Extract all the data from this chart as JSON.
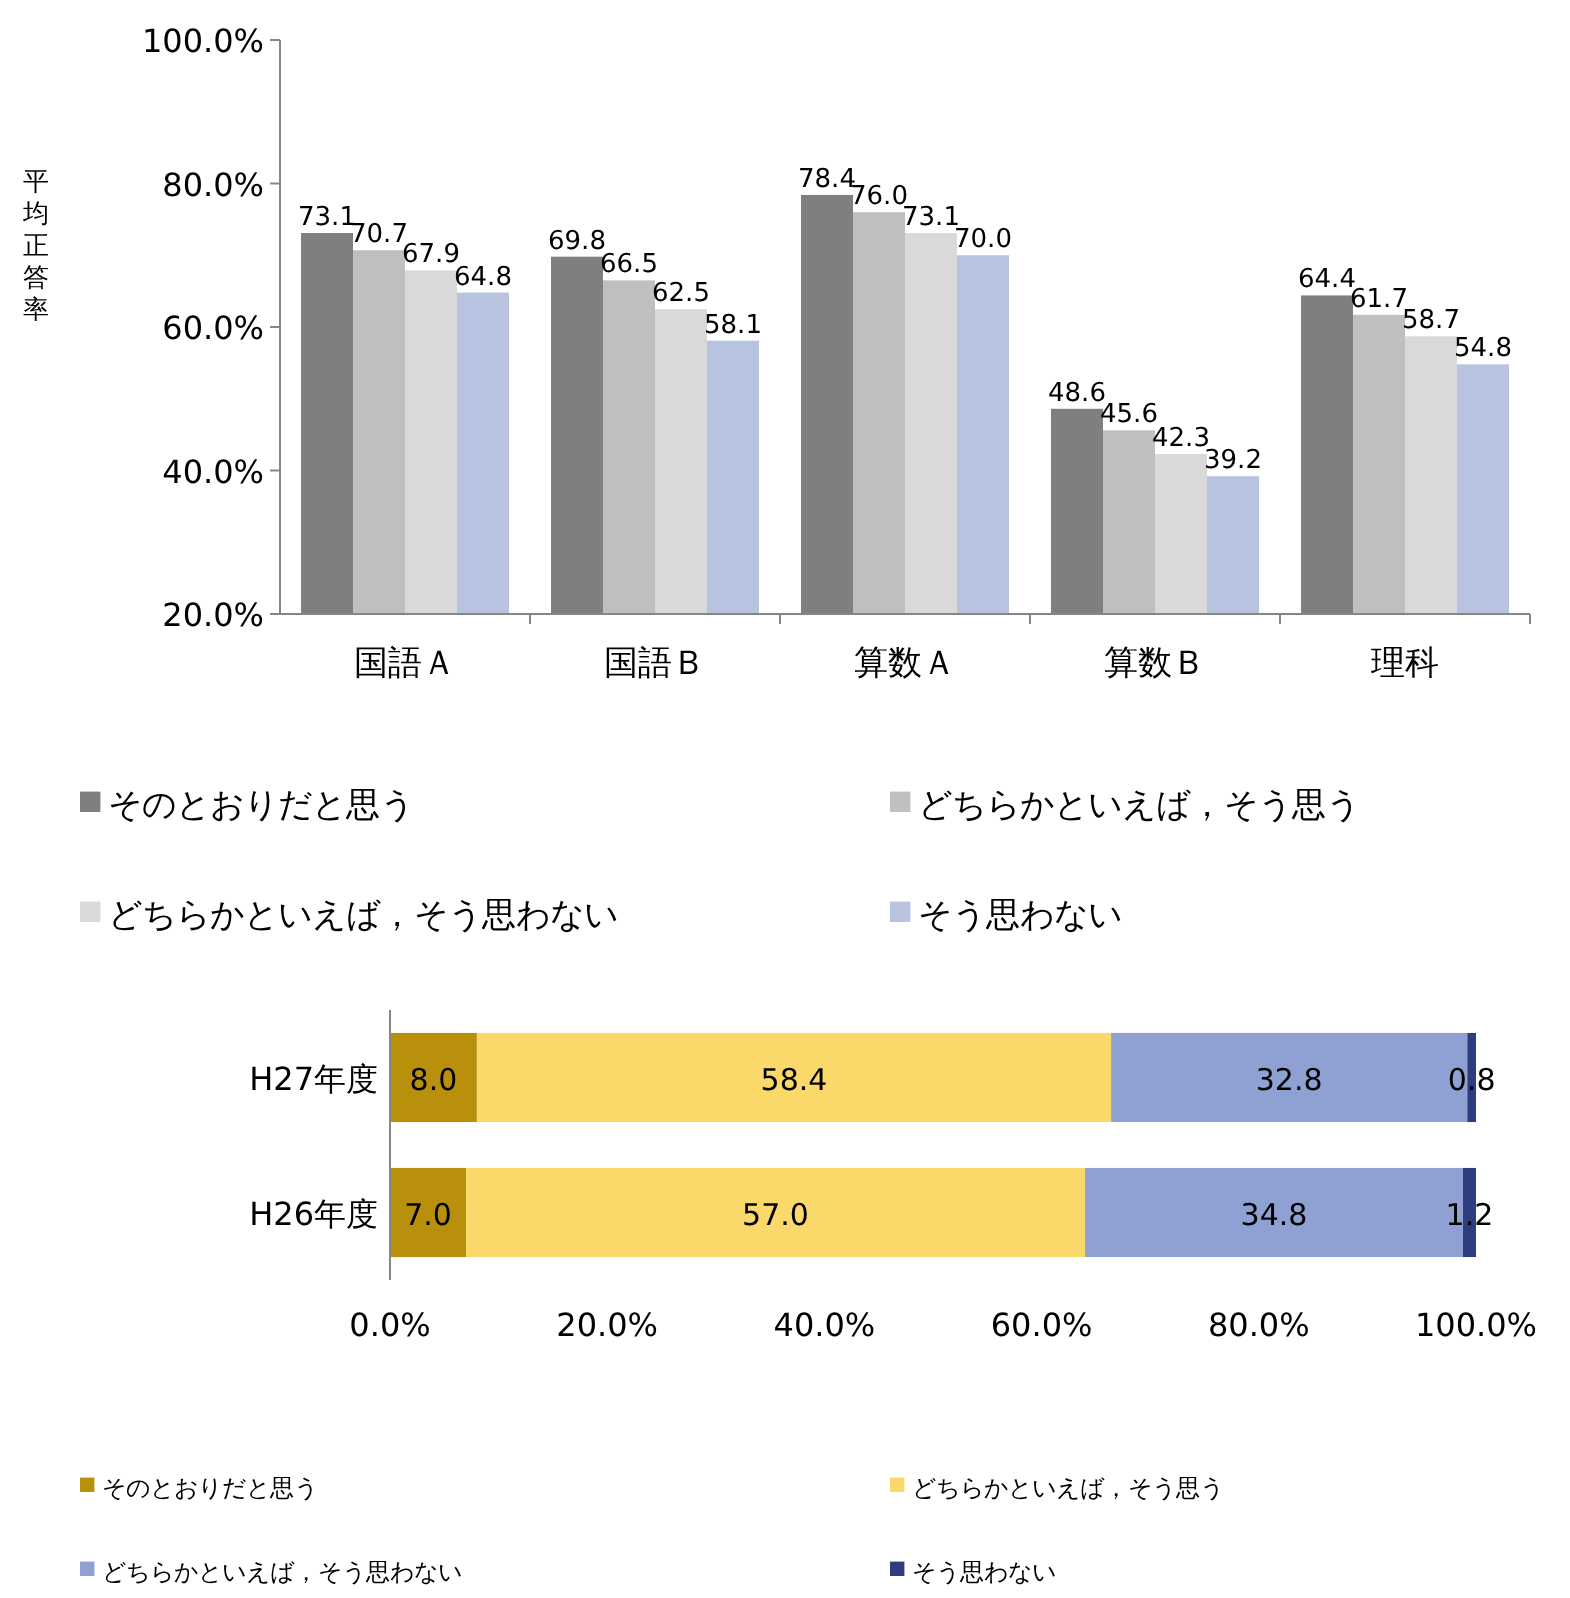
{
  "chart_data": [
    {
      "type": "bar",
      "ylabel": "平均正答率",
      "categories": [
        "国語Ａ",
        "国語Ｂ",
        "算数Ａ",
        "算数Ｂ",
        "理科"
      ],
      "series": [
        {
          "name": "そのとおりだと思う",
          "color": "#7f7f7f",
          "values": [
            73.1,
            69.8,
            78.4,
            48.6,
            64.4
          ],
          "value_labels": [
            "73.1",
            "69.8",
            "78.4",
            "48.6",
            "64.4"
          ]
        },
        {
          "name": "どちらかといえば，そう思う",
          "color": "#bfbfbf",
          "values": [
            70.7,
            66.5,
            76.0,
            45.6,
            61.7
          ],
          "value_labels": [
            "70.7",
            "66.5",
            "76.0",
            "45.6",
            "61.7"
          ]
        },
        {
          "name": "どちらかといえば，そう思わない",
          "color": "#d9d9d9",
          "values": [
            67.9,
            62.5,
            73.1,
            42.3,
            58.7
          ],
          "value_labels": [
            "67.9",
            "62.5",
            "73.1",
            "42.3",
            "58.7"
          ]
        },
        {
          "name": "そう思わない",
          "color": "#b7c3df",
          "values": [
            64.8,
            58.1,
            70.0,
            39.2,
            54.8
          ],
          "value_labels": [
            "64.8",
            "58.1",
            "70.0",
            "39.2",
            "54.8"
          ]
        }
      ],
      "ylim": [
        20,
        100
      ],
      "yticks": [
        {
          "value": 20,
          "label": "20.0%"
        },
        {
          "value": 40,
          "label": "40.0%"
        },
        {
          "value": 60,
          "label": "60.0%"
        },
        {
          "value": 80,
          "label": "80.0%"
        },
        {
          "value": 100,
          "label": "100.0%"
        }
      ],
      "legend": "bottom"
    },
    {
      "type": "bar",
      "orientation": "horizontal",
      "stacked": true,
      "categories": [
        "H27年度",
        "H26年度"
      ],
      "series": [
        {
          "name": "そのとおりだと思う",
          "color": "#b8900b",
          "values": [
            8.0,
            7.0
          ],
          "value_labels": [
            "8.0",
            "7.0"
          ]
        },
        {
          "name": "どちらかといえば，そう思う",
          "color": "#fad96a",
          "values": [
            58.4,
            57.0
          ],
          "value_labels": [
            "58.4",
            "57.0"
          ]
        },
        {
          "name": "どちらかといえば，そう思わない",
          "color": "#8fa1d2",
          "values": [
            32.8,
            34.8
          ],
          "value_labels": [
            "32.8",
            "34.8"
          ]
        },
        {
          "name": "そう思わない",
          "color": "#2e3d7d",
          "values": [
            0.8,
            1.2
          ],
          "value_labels": [
            "0.8",
            "1.2"
          ]
        }
      ],
      "xlim": [
        0,
        100
      ],
      "xticks": [
        {
          "value": 0,
          "label": "0.0%"
        },
        {
          "value": 20,
          "label": "20.0%"
        },
        {
          "value": 40,
          "label": "40.0%"
        },
        {
          "value": 60,
          "label": "60.0%"
        },
        {
          "value": 80,
          "label": "80.0%"
        },
        {
          "value": 100,
          "label": "100.0%"
        }
      ],
      "legend": "bottom"
    }
  ]
}
